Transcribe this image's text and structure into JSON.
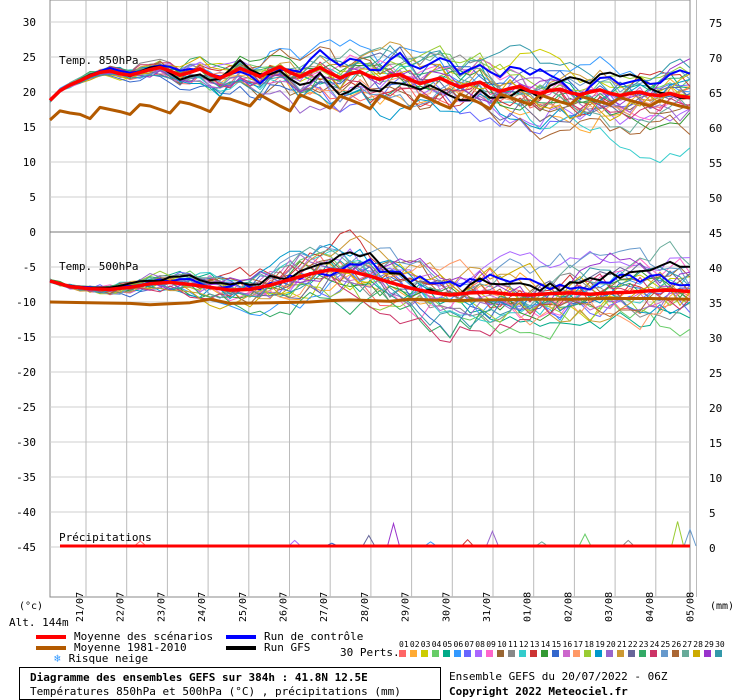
{
  "chart_data": {
    "type": "line",
    "dates": [
      "21/07",
      "22/07",
      "23/07",
      "24/07",
      "25/07",
      "26/07",
      "27/07",
      "28/07",
      "29/07",
      "30/07",
      "31/07",
      "01/08",
      "02/08",
      "03/08",
      "04/08",
      "05/08"
    ],
    "unit_left": "(°c)",
    "unit_right": "(mm)",
    "altitude": "Alt. 144m",
    "panels": [
      {
        "name": "Temp. 850hPa",
        "left_ticks": [
          "30",
          "25",
          "20",
          "15",
          "10",
          "5",
          "0"
        ],
        "right_ticks": [
          "75",
          "70",
          "65",
          "60",
          "55",
          "50"
        ],
        "ylim": [
          0,
          30
        ],
        "series": [
          {
            "name": "Moyenne des scénarios",
            "color": "#ff0000",
            "values": [
              [
                0,
                18.8
              ],
              [
                1,
                20.2
              ],
              [
                2,
                21
              ],
              [
                3,
                21.6
              ],
              [
                4,
                22.3
              ],
              [
                5,
                22.8
              ],
              [
                6,
                23
              ],
              [
                7,
                22.6
              ],
              [
                8,
                22.4
              ],
              [
                9,
                22.8
              ],
              [
                10,
                23.2
              ],
              [
                11,
                23.5
              ],
              [
                12,
                23
              ],
              [
                13,
                22.4
              ],
              [
                14,
                22.8
              ],
              [
                15,
                23.3
              ],
              [
                16,
                22.5
              ],
              [
                17,
                22
              ],
              [
                18,
                22.6
              ],
              [
                19,
                23.4
              ],
              [
                20,
                22.8
              ],
              [
                21,
                22.2
              ],
              [
                22,
                23
              ],
              [
                23,
                23.6
              ],
              [
                24,
                22.8
              ],
              [
                25,
                22.2
              ],
              [
                26,
                22.9
              ],
              [
                27,
                23.5
              ],
              [
                28,
                22.7
              ],
              [
                29,
                22
              ],
              [
                30,
                22.6
              ],
              [
                31,
                22.9
              ],
              [
                32,
                22.2
              ],
              [
                33,
                21.8
              ],
              [
                34,
                22.3
              ],
              [
                35,
                22.5
              ],
              [
                36,
                21.8
              ],
              [
                37,
                21.2
              ],
              [
                38,
                21.6
              ],
              [
                39,
                22
              ],
              [
                40,
                21.3
              ],
              [
                41,
                20.7
              ],
              [
                42,
                21.1
              ],
              [
                43,
                21.4
              ],
              [
                44,
                20.6
              ],
              [
                45,
                20.1
              ],
              [
                46,
                20.5
              ],
              [
                47,
                20.8
              ],
              [
                48,
                20.1
              ],
              [
                49,
                19.8
              ],
              [
                50,
                20.2
              ],
              [
                51,
                20.4
              ],
              [
                52,
                19.9
              ],
              [
                53,
                19.6
              ],
              [
                54,
                20
              ],
              [
                55,
                20.3
              ],
              [
                56,
                19.8
              ],
              [
                57,
                19.5
              ],
              [
                58,
                19.8
              ],
              [
                59,
                20
              ],
              [
                60,
                19.6
              ],
              [
                61,
                19.5
              ],
              [
                62,
                19.8
              ],
              [
                63,
                19.4
              ],
              [
                64,
                19.2
              ]
            ]
          },
          {
            "name": "Moyenne 1981-2010",
            "color": "#b35a00",
            "values": [
              [
                0,
                16
              ],
              [
                1,
                17.3
              ],
              [
                2,
                17
              ],
              [
                3,
                16.8
              ],
              [
                4,
                16.2
              ],
              [
                5,
                17.8
              ],
              [
                6,
                17.5
              ],
              [
                7,
                17.2
              ],
              [
                8,
                16.8
              ],
              [
                9,
                18.2
              ],
              [
                10,
                18
              ],
              [
                11,
                17.5
              ],
              [
                12,
                17
              ],
              [
                13,
                18.6
              ],
              [
                14,
                18.3
              ],
              [
                15,
                17.8
              ],
              [
                16,
                17.2
              ],
              [
                17,
                19.2
              ],
              [
                18,
                19
              ],
              [
                19,
                18.5
              ],
              [
                20,
                18
              ],
              [
                21,
                19.6
              ],
              [
                22,
                18.8
              ],
              [
                23,
                18
              ],
              [
                24,
                17.3
              ],
              [
                25,
                19.6
              ],
              [
                26,
                19
              ],
              [
                27,
                18.4
              ],
              [
                28,
                17.7
              ],
              [
                29,
                19.4
              ],
              [
                30,
                18.9
              ],
              [
                31,
                18.3
              ],
              [
                32,
                17.6
              ],
              [
                33,
                19.5
              ],
              [
                34,
                18.9
              ],
              [
                35,
                18.2
              ],
              [
                36,
                17.6
              ],
              [
                37,
                19.6
              ],
              [
                38,
                19
              ],
              [
                39,
                18.3
              ],
              [
                40,
                17.7
              ],
              [
                41,
                19.7
              ],
              [
                42,
                19.1
              ],
              [
                43,
                18.4
              ],
              [
                44,
                17.6
              ],
              [
                45,
                19.7
              ],
              [
                46,
                19.2
              ],
              [
                47,
                18.7
              ],
              [
                48,
                18.2
              ],
              [
                49,
                19.6
              ],
              [
                50,
                19.1
              ],
              [
                51,
                18.6
              ],
              [
                52,
                18.2
              ],
              [
                53,
                19.4
              ],
              [
                54,
                19
              ],
              [
                55,
                18.6
              ],
              [
                56,
                18.2
              ],
              [
                57,
                19.2
              ],
              [
                58,
                18.8
              ],
              [
                59,
                18.4
              ],
              [
                60,
                18
              ],
              [
                61,
                18.8
              ],
              [
                62,
                18.4
              ],
              [
                63,
                18
              ],
              [
                64,
                17.7
              ]
            ]
          }
        ]
      },
      {
        "name": "Temp. 500hPa",
        "left_ticks": [
          "-5",
          "-10",
          "-15",
          "-20",
          "-25",
          "-30",
          "-35",
          "-40",
          "-45"
        ],
        "right_ticks": [
          "45",
          "40",
          "35",
          "30",
          "25",
          "20",
          "15",
          "10",
          "5",
          "0"
        ],
        "ylim": [
          -50,
          0
        ],
        "series": [
          {
            "name": "Moyenne des scénarios",
            "color": "#ff0000",
            "values": [
              [
                0,
                -7
              ],
              [
                2,
                -7.8
              ],
              [
                4,
                -8.1
              ],
              [
                6,
                -8.2
              ],
              [
                8,
                -7.9
              ],
              [
                10,
                -7.4
              ],
              [
                12,
                -7.2
              ],
              [
                14,
                -7.5
              ],
              [
                16,
                -7.9
              ],
              [
                18,
                -8.3
              ],
              [
                20,
                -8.2
              ],
              [
                22,
                -7.6
              ],
              [
                24,
                -6.8
              ],
              [
                26,
                -6
              ],
              [
                28,
                -5.4
              ],
              [
                30,
                -5.6
              ],
              [
                32,
                -6.3
              ],
              [
                34,
                -7.2
              ],
              [
                36,
                -8
              ],
              [
                38,
                -8.6
              ],
              [
                40,
                -9
              ],
              [
                42,
                -8.7
              ],
              [
                44,
                -8.6
              ],
              [
                46,
                -8.9
              ],
              [
                48,
                -9
              ],
              [
                50,
                -8.8
              ],
              [
                52,
                -8.7
              ],
              [
                54,
                -8.9
              ],
              [
                56,
                -8.7
              ],
              [
                58,
                -8.6
              ],
              [
                60,
                -8.4
              ],
              [
                62,
                -8.3
              ],
              [
                64,
                -8.5
              ]
            ]
          },
          {
            "name": "Moyenne 1981-2010",
            "color": "#b35a00",
            "values": [
              [
                0,
                -10
              ],
              [
                4,
                -10.1
              ],
              [
                8,
                -10.2
              ],
              [
                10,
                -10.4
              ],
              [
                14,
                -10.1
              ],
              [
                16,
                -9.6
              ],
              [
                18,
                -10.2
              ],
              [
                22,
                -10.1
              ],
              [
                26,
                -10
              ],
              [
                28,
                -9.8
              ],
              [
                30,
                -9.7
              ],
              [
                34,
                -9.9
              ],
              [
                36,
                -9.6
              ],
              [
                40,
                -9.8
              ],
              [
                44,
                -9.7
              ],
              [
                48,
                -9.6
              ],
              [
                52,
                -9.6
              ],
              [
                56,
                -9.5
              ],
              [
                60,
                -9.5
              ],
              [
                64,
                -9.6
              ]
            ]
          }
        ]
      }
    ],
    "precip": {
      "name": "Précipitations",
      "ylim": [
        0,
        10
      ],
      "mean": [
        [
          0,
          0
        ],
        [
          64,
          0
        ]
      ],
      "spikes": [
        [
          13,
          0.7
        ],
        [
          38,
          0.8
        ],
        [
          44,
          0.4
        ],
        [
          50,
          1.5
        ],
        [
          54,
          3.2
        ],
        [
          60,
          0.6
        ],
        [
          66,
          0.9
        ],
        [
          70,
          2.1
        ],
        [
          78,
          0.6
        ],
        [
          85,
          1.7
        ],
        [
          92,
          0.8
        ],
        [
          100,
          3.5
        ],
        [
          102,
          2.4
        ]
      ]
    },
    "ensemble_colors": [
      "#ff6666",
      "#ffaa33",
      "#cccc00",
      "#66cc66",
      "#00aa88",
      "#3399ff",
      "#6666ff",
      "#aa66ff",
      "#ff66cc",
      "#996633",
      "#888888",
      "#33cccc",
      "#cc3333",
      "#339933",
      "#3366cc",
      "#cc66cc",
      "#ff9966",
      "#99cc33",
      "#0099cc",
      "#9966cc",
      "#cc9933",
      "#666699",
      "#33aa66",
      "#cc3366",
      "#6699cc",
      "#aa6633",
      "#66aa99",
      "#ccaa00",
      "#9933cc",
      "#3399aa"
    ]
  },
  "legend": {
    "mean": "Moyenne des scénarios",
    "climato": "Moyenne 1981-2010",
    "snow": "Risque neige",
    "control": "Run de contrôle",
    "gfs": "Run GFS",
    "perts": "30 Perts.",
    "pert_numbers": [
      "01",
      "02",
      "03",
      "04",
      "05",
      "06",
      "07",
      "08",
      "09",
      "10",
      "11",
      "12",
      "13",
      "14",
      "15",
      "16",
      "17",
      "18",
      "19",
      "20",
      "21",
      "22",
      "23",
      "24",
      "25",
      "26",
      "27",
      "28",
      "29",
      "30"
    ],
    "colors": {
      "mean": "#ff0000",
      "climato": "#b35a00",
      "control": "#0000ff",
      "gfs": "#000000"
    }
  },
  "footer": {
    "title": "Diagramme des ensembles GEFS sur 384h : 41.8N 12.5E",
    "subtitle": "Températures 850hPa et 500hPa (°C) , précipitations (mm)",
    "run": "Ensemble GEFS du 20/07/2022 - 06Z",
    "copyright": "Copyright 2022 Meteociel.fr"
  }
}
